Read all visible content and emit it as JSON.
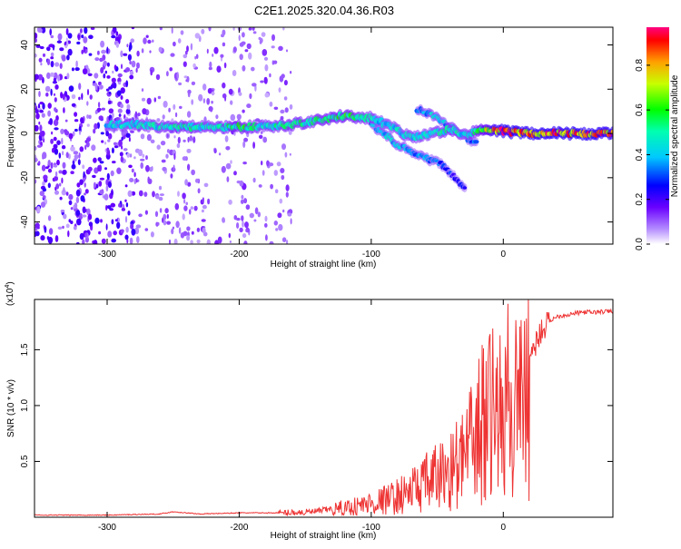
{
  "chart_data": [
    {
      "type": "heatmap",
      "title": "C2E1.2025.320.04.36.R03",
      "xlabel": "Height of straight line (km)",
      "ylabel": "Frequency (Hz)",
      "xlim": [
        -355,
        83
      ],
      "ylim": [
        -50,
        48
      ],
      "xticks": [
        -300,
        -200,
        -100,
        0
      ],
      "xtick_labels": [
        "-300",
        "-200",
        "-100",
        "0"
      ],
      "yticks": [
        -40,
        -20,
        0,
        20,
        40
      ],
      "ytick_labels": [
        "-40",
        "-20",
        "0",
        "20",
        "40"
      ],
      "colorbar": {
        "label": "Normalized spectral amplitude",
        "range": [
          0,
          0.97
        ],
        "ticks": [
          0.0,
          0.2,
          0.4,
          0.6,
          0.8
        ],
        "tick_labels": [
          "0.0",
          "0.2",
          "0.4",
          "0.6",
          "0.8"
        ]
      },
      "ridge": {
        "x": [
          -300,
          -280,
          -260,
          -240,
          -220,
          -200,
          -180,
          -160,
          -140,
          -120,
          -100,
          -85,
          -70,
          -55,
          -40,
          -30,
          -20,
          -10,
          0,
          20,
          40,
          60,
          83
        ],
        "y": [
          4,
          4,
          3,
          3,
          3,
          3,
          3,
          4,
          6,
          8,
          7,
          3,
          -2,
          0,
          2,
          -1,
          1,
          2,
          1,
          0,
          0,
          0,
          0
        ],
        "amplitude": [
          0.45,
          0.5,
          0.5,
          0.55,
          0.5,
          0.6,
          0.5,
          0.55,
          0.55,
          0.6,
          0.5,
          0.45,
          0.5,
          0.45,
          0.55,
          0.45,
          0.6,
          0.8,
          0.95,
          0.9,
          0.92,
          0.92,
          0.9
        ]
      },
      "secondary_branch": {
        "x": [
          -100,
          -90,
          -80,
          -70,
          -60,
          -50,
          -45,
          -40,
          -35,
          -30,
          -28
        ],
        "y": [
          4,
          0,
          -5,
          -8,
          -11,
          -13,
          -15,
          -18,
          -21,
          -24,
          -25
        ],
        "amplitude": [
          0.4,
          0.45,
          0.45,
          0.4,
          0.4,
          0.35,
          0.3,
          0.3,
          0.25,
          0.3,
          0.3
        ]
      },
      "upper_branch": {
        "x": [
          -65,
          -60,
          -55,
          -50,
          -45,
          -40,
          -35,
          -30,
          -25,
          -20
        ],
        "y": [
          11,
          10,
          9,
          7,
          5,
          3,
          1,
          -1,
          -3,
          -5
        ],
        "amplitude": [
          0.4,
          0.4,
          0.45,
          0.45,
          0.4,
          0.45,
          0.4,
          0.4,
          0.35,
          0.35
        ]
      },
      "noise_region": [
        -355,
        -160
      ]
    },
    {
      "type": "line",
      "title": "",
      "xlabel": "Height of straight line (km)",
      "ylabel": "SNR (10 * v/v)",
      "multiplier_label": "(x10",
      "multiplier_exp": "4",
      "xlim": [
        -355,
        83
      ],
      "ylim": [
        0,
        1.95
      ],
      "xticks": [
        -300,
        -200,
        -100,
        0
      ],
      "xtick_labels": [
        "-300",
        "-200",
        "-100",
        "0"
      ],
      "yticks": [
        0.5,
        1.0,
        1.5
      ],
      "ytick_labels": [
        "0.5",
        "1.0",
        "1.5"
      ],
      "series": [
        {
          "name": "SNR",
          "color": "#ee3333",
          "x": [
            -355,
            -330,
            -300,
            -280,
            -260,
            -250,
            -230,
            -200,
            -180,
            -170,
            -160,
            -150,
            -140,
            -130,
            -120,
            -110,
            -100,
            -90,
            -80,
            -70,
            -60,
            -50,
            -40,
            -30,
            -25,
            -20,
            -15,
            -10,
            -5,
            0,
            5,
            10,
            15,
            20,
            25,
            30,
            40,
            50,
            60,
            70,
            83
          ],
          "y": [
            0.02,
            0.02,
            0.02,
            0.025,
            0.03,
            0.05,
            0.03,
            0.04,
            0.04,
            0.04,
            0.05,
            0.05,
            0.06,
            0.08,
            0.1,
            0.12,
            0.15,
            0.18,
            0.22,
            0.28,
            0.35,
            0.42,
            0.5,
            0.62,
            0.72,
            0.85,
            1.05,
            1.1,
            1.0,
            1.05,
            1.3,
            1.1,
            1.3,
            1.45,
            1.6,
            1.72,
            1.8,
            1.82,
            1.84,
            1.84,
            1.85
          ]
        }
      ]
    }
  ]
}
